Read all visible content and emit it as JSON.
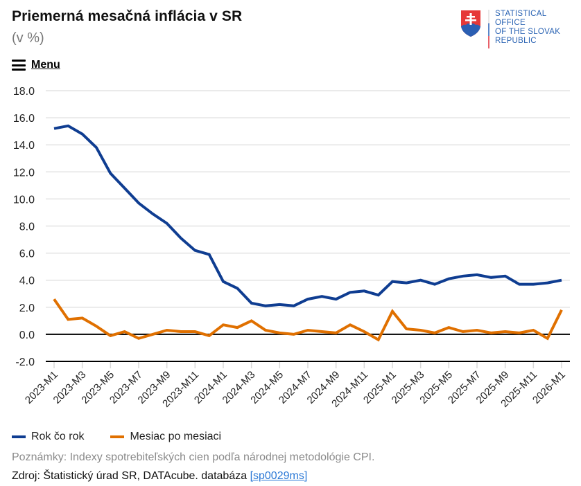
{
  "header": {
    "title": "Priemerná mesačná inflácia v SR",
    "subtitle": "(v %)",
    "menu_label": "Menu",
    "menu_icon": "hamburger-icon"
  },
  "logo": {
    "icon": "slovak-coat-of-arms-icon",
    "lines": [
      "STATISTICAL",
      "OFFICE",
      "OF THE SLOVAK",
      "REPUBLIC"
    ],
    "colors": {
      "text": "#2a63b3",
      "shield_red": "#e63838",
      "shield_blue": "#2b5fb3"
    }
  },
  "footer": {
    "note": "Poznámky: Indexy spotrebiteľských cien podľa národnej metodológie CPI.",
    "source_prefix": "Zdroj: Štatistický úrad SR, DATAcube. databáza ",
    "source_link": "[sp0029ms]"
  },
  "chart_data": {
    "type": "line",
    "title": "Priemerná mesačná inflácia v SR",
    "subtitle": "(v %)",
    "xlabel": "",
    "ylabel": "",
    "ylim": [
      -2.0,
      18.0
    ],
    "yticks": [
      "18.0",
      "16.0",
      "14.0",
      "12.0",
      "10.0",
      "8.0",
      "6.0",
      "4.0",
      "2.0",
      "0.0",
      "-2.0"
    ],
    "ytick_values": [
      18,
      16,
      14,
      12,
      10,
      8,
      6,
      4,
      2,
      0,
      -2
    ],
    "grid": true,
    "legend_position": "bottom-left",
    "x": [
      "2023-M1",
      "2023-M2",
      "2023-M3",
      "2023-M4",
      "2023-M5",
      "2023-M6",
      "2023-M7",
      "2023-M8",
      "2023-M9",
      "2023-M10",
      "2023-M11",
      "2023-M12",
      "2024-M1",
      "2024-M2",
      "2024-M3",
      "2024-M4",
      "2024-M5",
      "2024-M6",
      "2024-M7",
      "2024-M8",
      "2024-M9",
      "2024-M10",
      "2024-M11",
      "2024-M12",
      "2025-M1",
      "2025-M2",
      "2025-M3",
      "2025-M4",
      "2025-M5",
      "2025-M6",
      "2025-M7",
      "2025-M8",
      "2025-M9",
      "2025-M10",
      "2025-M11",
      "2025-M12",
      "2026-M1"
    ],
    "xtick_labels": [
      "2023-M1",
      "2023-M3",
      "2023-M5",
      "2023-M7",
      "2023-M9",
      "2023-M11",
      "2024-M1",
      "2024-M3",
      "2024-M5",
      "2024-M7",
      "2024-M9",
      "2024-M11",
      "2025-M1",
      "2025-M3",
      "2025-M5",
      "2025-M7",
      "2025-M9",
      "2025-M11",
      "2026-M1"
    ],
    "series": [
      {
        "name": "Rok čo rok",
        "color": "#0f3d91",
        "values": [
          15.2,
          15.4,
          14.8,
          13.8,
          11.9,
          10.8,
          9.7,
          8.9,
          8.2,
          7.1,
          6.2,
          5.9,
          3.9,
          3.4,
          2.3,
          2.1,
          2.2,
          2.1,
          2.6,
          2.8,
          2.6,
          3.1,
          3.2,
          2.9,
          3.9,
          3.8,
          4.0,
          3.7,
          4.1,
          4.3,
          4.4,
          4.2,
          4.3,
          3.7,
          3.7,
          3.8,
          4.0
        ]
      },
      {
        "name": "Mesiac po mesiaci",
        "color": "#e07000",
        "values": [
          2.6,
          1.1,
          1.2,
          0.6,
          -0.1,
          0.2,
          -0.3,
          0.0,
          0.3,
          0.2,
          0.2,
          -0.1,
          0.7,
          0.5,
          1.0,
          0.3,
          0.1,
          0.0,
          0.3,
          0.2,
          0.1,
          0.7,
          0.2,
          -0.4,
          1.7,
          0.4,
          0.3,
          0.1,
          0.5,
          0.2,
          0.3,
          0.1,
          0.2,
          0.1,
          0.3,
          -0.3,
          1.8
        ]
      }
    ]
  }
}
